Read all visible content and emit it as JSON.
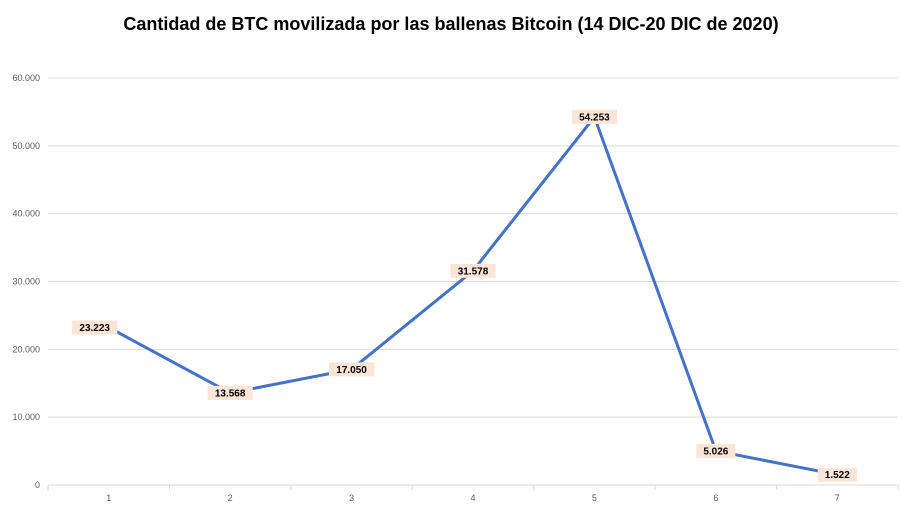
{
  "chart_data": {
    "type": "line",
    "title": "Cantidad de BTC movilizada por las ballenas Bitcoin (14 DIC-20 DIC de 2020)",
    "xlabel": "",
    "ylabel": "",
    "categories": [
      "1",
      "2",
      "3",
      "4",
      "5",
      "6",
      "7"
    ],
    "series": [
      {
        "values": [
          23223,
          13568,
          17050,
          31578,
          54253,
          5026,
          1522
        ],
        "labels": [
          "23.223",
          "13.568",
          "17.050",
          "31.578",
          "54.253",
          "5.026",
          "1.522"
        ]
      }
    ],
    "ylim": [
      0,
      60000
    ],
    "yticks": [
      0,
      10000,
      20000,
      30000,
      40000,
      50000,
      60000
    ],
    "ytick_labels": [
      "0",
      "10.000",
      "20.000",
      "30.000",
      "40.000",
      "50.000",
      "60.000"
    ],
    "grid": true,
    "legend": "none",
    "colors": {
      "line": "#4472C4",
      "label_bg": "#FBE5D6",
      "grid": "#D9D9D9",
      "axis": "#D9D9D9",
      "tick_text": "#595959"
    }
  }
}
